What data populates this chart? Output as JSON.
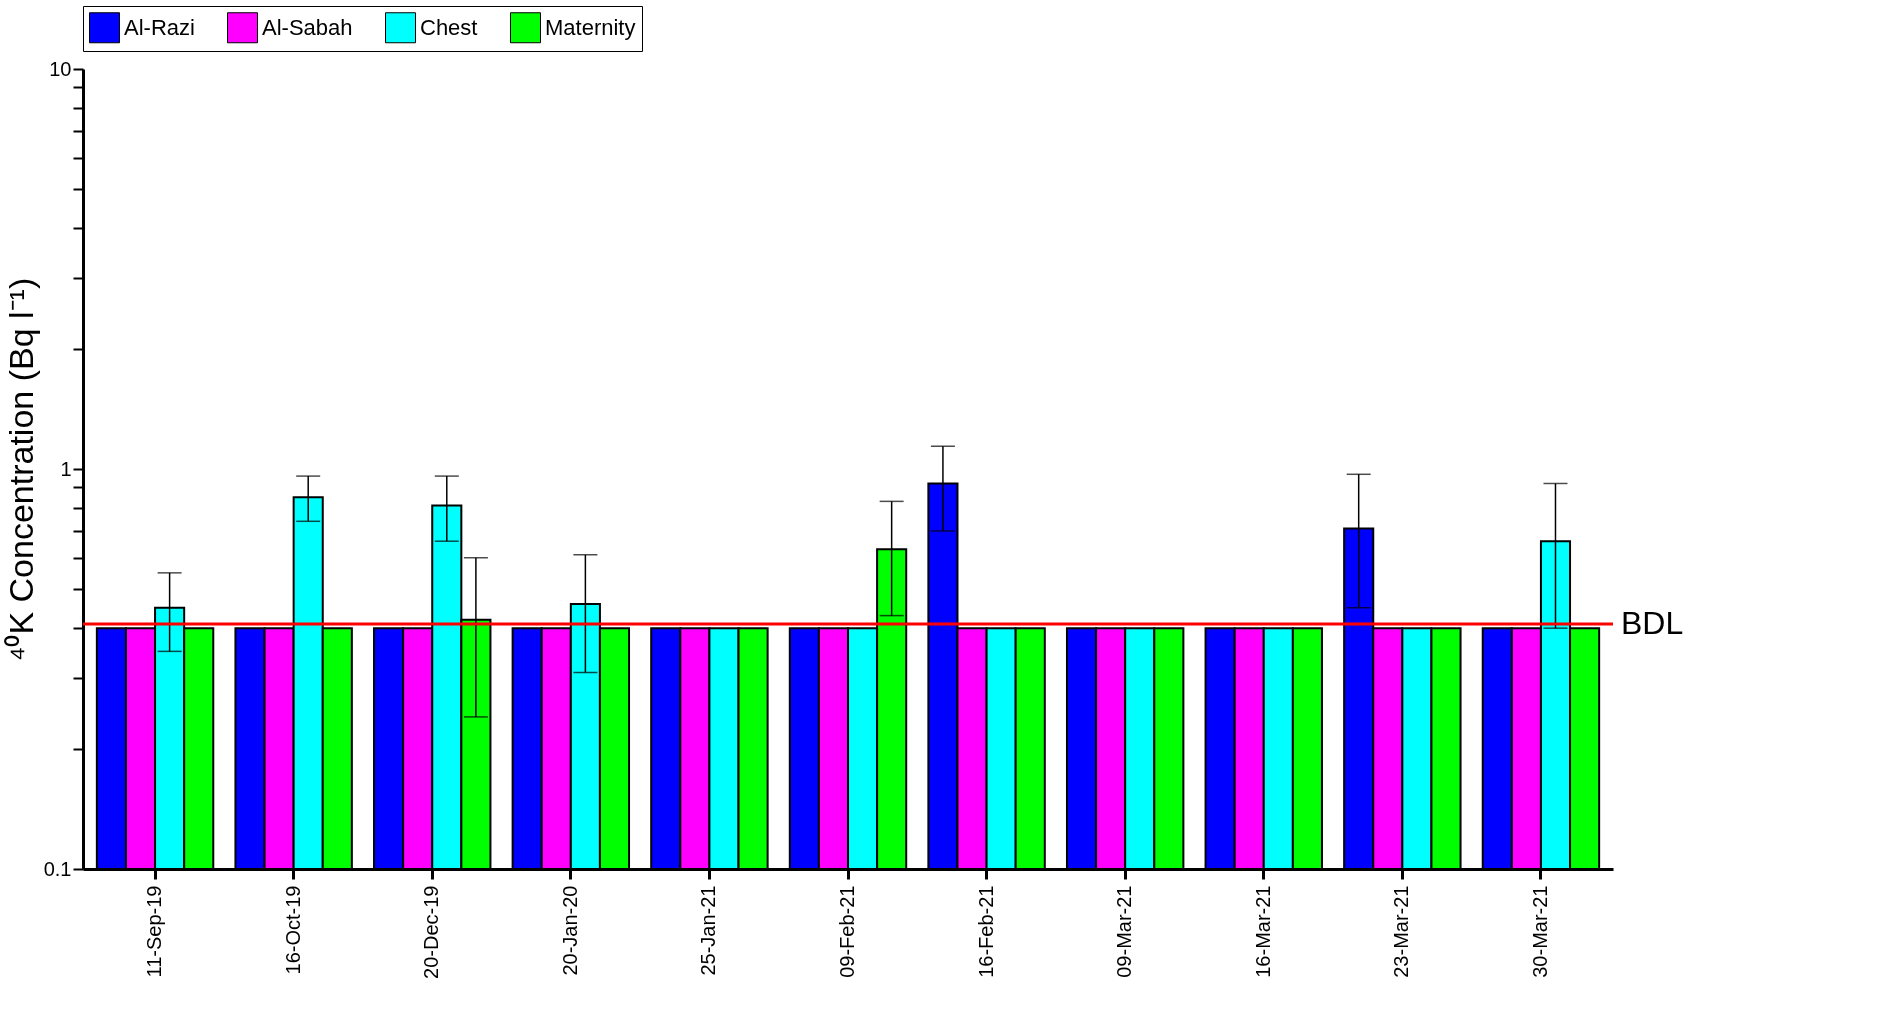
{
  "chart_data": {
    "type": "bar",
    "ylabel": "⁴⁰K Concentration (Bq l⁻¹)",
    "categories": [
      "11-Sep-19",
      "16-Oct-19",
      "20-Dec-19",
      "20-Jan-20",
      "25-Jan-21",
      "09-Feb-21",
      "16-Feb-21",
      "09-Mar-21",
      "16-Mar-21",
      "23-Mar-21",
      "30-Mar-21"
    ],
    "series": [
      {
        "name": "Al-Razi",
        "color": "#0000ff",
        "values": [
          0.4,
          0.4,
          0.4,
          0.4,
          0.4,
          0.4,
          0.92,
          0.4,
          0.4,
          0.71,
          0.4
        ],
        "errors": [
          null,
          null,
          null,
          null,
          null,
          null,
          0.22,
          null,
          null,
          0.26,
          null
        ]
      },
      {
        "name": "Al-Sabah",
        "color": "#ff00ff",
        "values": [
          0.4,
          0.4,
          0.4,
          0.4,
          0.4,
          0.4,
          0.4,
          0.4,
          0.4,
          0.4,
          0.4
        ]
      },
      {
        "name": "Chest",
        "color": "#00ffff",
        "values": [
          0.45,
          0.85,
          0.81,
          0.46,
          0.4,
          0.4,
          0.4,
          0.4,
          0.4,
          0.4,
          0.66
        ],
        "errors": [
          0.1,
          0.11,
          0.15,
          0.15,
          null,
          null,
          null,
          null,
          null,
          null,
          0.26
        ]
      },
      {
        "name": "Maternity",
        "color": "#00ff00",
        "values": [
          0.4,
          0.4,
          0.42,
          0.4,
          0.4,
          0.63,
          0.4,
          0.4,
          0.4,
          0.4,
          0.4
        ],
        "errors": [
          null,
          null,
          0.18,
          null,
          null,
          0.2,
          null,
          null,
          null,
          null,
          null
        ]
      }
    ],
    "log": true,
    "ylim": [
      0.1,
      10
    ],
    "yticks": [
      0.1,
      {
        "value": 0.2,
        "label": null
      },
      {
        "value": 0.3,
        "label": null
      },
      {
        "value": 0.4,
        "label": null
      },
      {
        "value": 0.5,
        "label": null
      },
      {
        "value": 0.6,
        "label": null
      },
      {
        "value": 0.7,
        "label": null
      },
      {
        "value": 0.8,
        "label": null
      },
      {
        "value": 0.9,
        "label": null
      },
      1,
      {
        "value": 2,
        "label": null
      },
      {
        "value": 3,
        "label": null
      },
      {
        "value": 4,
        "label": null
      },
      {
        "value": 5,
        "label": null
      },
      {
        "value": 6,
        "label": null
      },
      {
        "value": 7,
        "label": null
      },
      {
        "value": 8,
        "label": null
      },
      {
        "value": 9,
        "label": null
      },
      10
    ],
    "ref_lines": [
      {
        "axis": "y",
        "value": 0.41,
        "label": "BDL",
        "color": "#ff0000"
      }
    ],
    "grid": false,
    "legend": "top"
  }
}
